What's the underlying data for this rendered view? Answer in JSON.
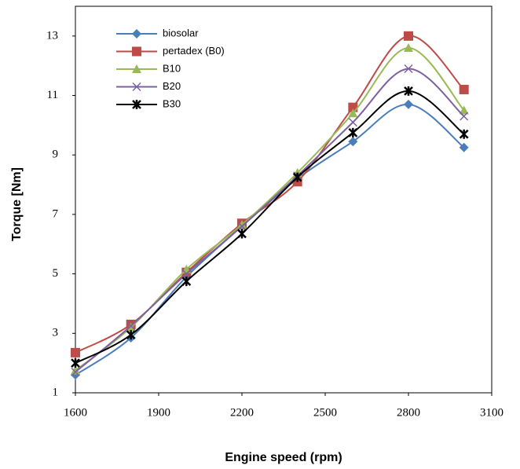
{
  "chart_data": {
    "type": "line",
    "x_label": "Engine speed (rpm)",
    "y_label": "Torque  [Nm]",
    "x": [
      1600,
      1800,
      2000,
      2200,
      2400,
      2600,
      2800,
      3000
    ],
    "series": [
      {
        "name": "biosolar",
        "color": "#4a7ebb",
        "marker": "diamond",
        "values": [
          1.6,
          2.85,
          4.9,
          6.6,
          8.2,
          9.45,
          10.7,
          9.25
        ]
      },
      {
        "name": "pertadex (B0)",
        "color": "#be4b48",
        "marker": "square",
        "values": [
          2.35,
          3.3,
          5.05,
          6.7,
          8.1,
          10.6,
          13.0,
          11.2
        ]
      },
      {
        "name": "B10",
        "color": "#98b954",
        "marker": "triangle",
        "values": [
          1.75,
          3.2,
          5.15,
          6.65,
          8.4,
          10.4,
          12.6,
          10.5
        ]
      },
      {
        "name": "B20",
        "color": "#7d60a0",
        "marker": "x",
        "values": [
          1.7,
          3.25,
          5.0,
          6.6,
          8.3,
          10.1,
          11.9,
          10.3
        ]
      },
      {
        "name": "B30",
        "color": "#000000",
        "marker": "star",
        "values": [
          2.0,
          2.95,
          4.75,
          6.35,
          8.25,
          9.75,
          11.15,
          9.7
        ]
      }
    ],
    "xlim": [
      1600,
      3100
    ],
    "xticks": [
      1600,
      1900,
      2200,
      2500,
      2800,
      3100
    ],
    "ylim": [
      1,
      14
    ],
    "yticks": [
      1,
      3,
      5,
      7,
      9,
      11,
      13
    ],
    "legend": "top-left"
  }
}
